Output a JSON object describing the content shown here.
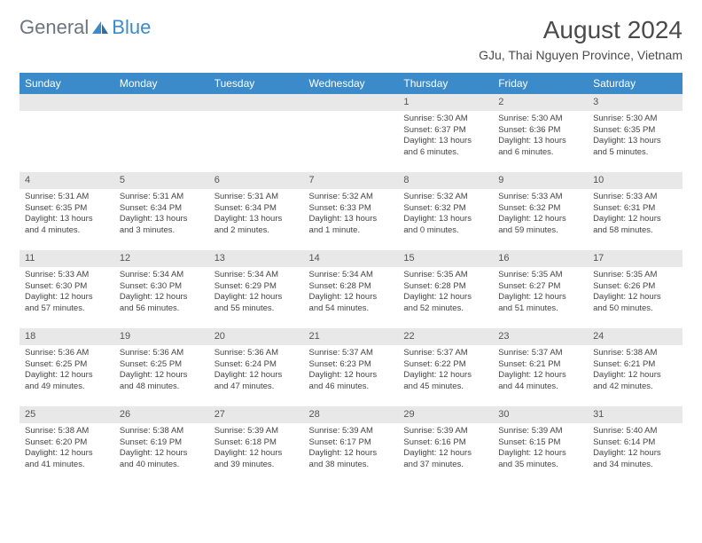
{
  "logo": {
    "general": "General",
    "blue": "Blue"
  },
  "title": "August 2024",
  "location": "GJu, Thai Nguyen Province, Vietnam",
  "colors": {
    "header_bg": "#3b8bcb",
    "header_text": "#ffffff",
    "daynum_bg": "#e8e8e8",
    "text": "#444444",
    "logo_grey": "#6b7580",
    "logo_blue": "#3b8bcb",
    "background": "#ffffff",
    "separator": "#c8c8c8"
  },
  "typography": {
    "title_fontsize": 28,
    "location_fontsize": 14,
    "dayhead_fontsize": 12,
    "cell_fontsize": 9.5
  },
  "dayheads": [
    "Sunday",
    "Monday",
    "Tuesday",
    "Wednesday",
    "Thursday",
    "Friday",
    "Saturday"
  ],
  "weeks": [
    [
      null,
      null,
      null,
      null,
      {
        "n": "1",
        "sr": "5:30 AM",
        "ss": "6:37 PM",
        "dl": "13 hours and 6 minutes."
      },
      {
        "n": "2",
        "sr": "5:30 AM",
        "ss": "6:36 PM",
        "dl": "13 hours and 6 minutes."
      },
      {
        "n": "3",
        "sr": "5:30 AM",
        "ss": "6:35 PM",
        "dl": "13 hours and 5 minutes."
      }
    ],
    [
      {
        "n": "4",
        "sr": "5:31 AM",
        "ss": "6:35 PM",
        "dl": "13 hours and 4 minutes."
      },
      {
        "n": "5",
        "sr": "5:31 AM",
        "ss": "6:34 PM",
        "dl": "13 hours and 3 minutes."
      },
      {
        "n": "6",
        "sr": "5:31 AM",
        "ss": "6:34 PM",
        "dl": "13 hours and 2 minutes."
      },
      {
        "n": "7",
        "sr": "5:32 AM",
        "ss": "6:33 PM",
        "dl": "13 hours and 1 minute."
      },
      {
        "n": "8",
        "sr": "5:32 AM",
        "ss": "6:32 PM",
        "dl": "13 hours and 0 minutes."
      },
      {
        "n": "9",
        "sr": "5:33 AM",
        "ss": "6:32 PM",
        "dl": "12 hours and 59 minutes."
      },
      {
        "n": "10",
        "sr": "5:33 AM",
        "ss": "6:31 PM",
        "dl": "12 hours and 58 minutes."
      }
    ],
    [
      {
        "n": "11",
        "sr": "5:33 AM",
        "ss": "6:30 PM",
        "dl": "12 hours and 57 minutes."
      },
      {
        "n": "12",
        "sr": "5:34 AM",
        "ss": "6:30 PM",
        "dl": "12 hours and 56 minutes."
      },
      {
        "n": "13",
        "sr": "5:34 AM",
        "ss": "6:29 PM",
        "dl": "12 hours and 55 minutes."
      },
      {
        "n": "14",
        "sr": "5:34 AM",
        "ss": "6:28 PM",
        "dl": "12 hours and 54 minutes."
      },
      {
        "n": "15",
        "sr": "5:35 AM",
        "ss": "6:28 PM",
        "dl": "12 hours and 52 minutes."
      },
      {
        "n": "16",
        "sr": "5:35 AM",
        "ss": "6:27 PM",
        "dl": "12 hours and 51 minutes."
      },
      {
        "n": "17",
        "sr": "5:35 AM",
        "ss": "6:26 PM",
        "dl": "12 hours and 50 minutes."
      }
    ],
    [
      {
        "n": "18",
        "sr": "5:36 AM",
        "ss": "6:25 PM",
        "dl": "12 hours and 49 minutes."
      },
      {
        "n": "19",
        "sr": "5:36 AM",
        "ss": "6:25 PM",
        "dl": "12 hours and 48 minutes."
      },
      {
        "n": "20",
        "sr": "5:36 AM",
        "ss": "6:24 PM",
        "dl": "12 hours and 47 minutes."
      },
      {
        "n": "21",
        "sr": "5:37 AM",
        "ss": "6:23 PM",
        "dl": "12 hours and 46 minutes."
      },
      {
        "n": "22",
        "sr": "5:37 AM",
        "ss": "6:22 PM",
        "dl": "12 hours and 45 minutes."
      },
      {
        "n": "23",
        "sr": "5:37 AM",
        "ss": "6:21 PM",
        "dl": "12 hours and 44 minutes."
      },
      {
        "n": "24",
        "sr": "5:38 AM",
        "ss": "6:21 PM",
        "dl": "12 hours and 42 minutes."
      }
    ],
    [
      {
        "n": "25",
        "sr": "5:38 AM",
        "ss": "6:20 PM",
        "dl": "12 hours and 41 minutes."
      },
      {
        "n": "26",
        "sr": "5:38 AM",
        "ss": "6:19 PM",
        "dl": "12 hours and 40 minutes."
      },
      {
        "n": "27",
        "sr": "5:39 AM",
        "ss": "6:18 PM",
        "dl": "12 hours and 39 minutes."
      },
      {
        "n": "28",
        "sr": "5:39 AM",
        "ss": "6:17 PM",
        "dl": "12 hours and 38 minutes."
      },
      {
        "n": "29",
        "sr": "5:39 AM",
        "ss": "6:16 PM",
        "dl": "12 hours and 37 minutes."
      },
      {
        "n": "30",
        "sr": "5:39 AM",
        "ss": "6:15 PM",
        "dl": "12 hours and 35 minutes."
      },
      {
        "n": "31",
        "sr": "5:40 AM",
        "ss": "6:14 PM",
        "dl": "12 hours and 34 minutes."
      }
    ]
  ],
  "labels": {
    "sunrise": "Sunrise: ",
    "sunset": "Sunset: ",
    "daylight": "Daylight: "
  }
}
